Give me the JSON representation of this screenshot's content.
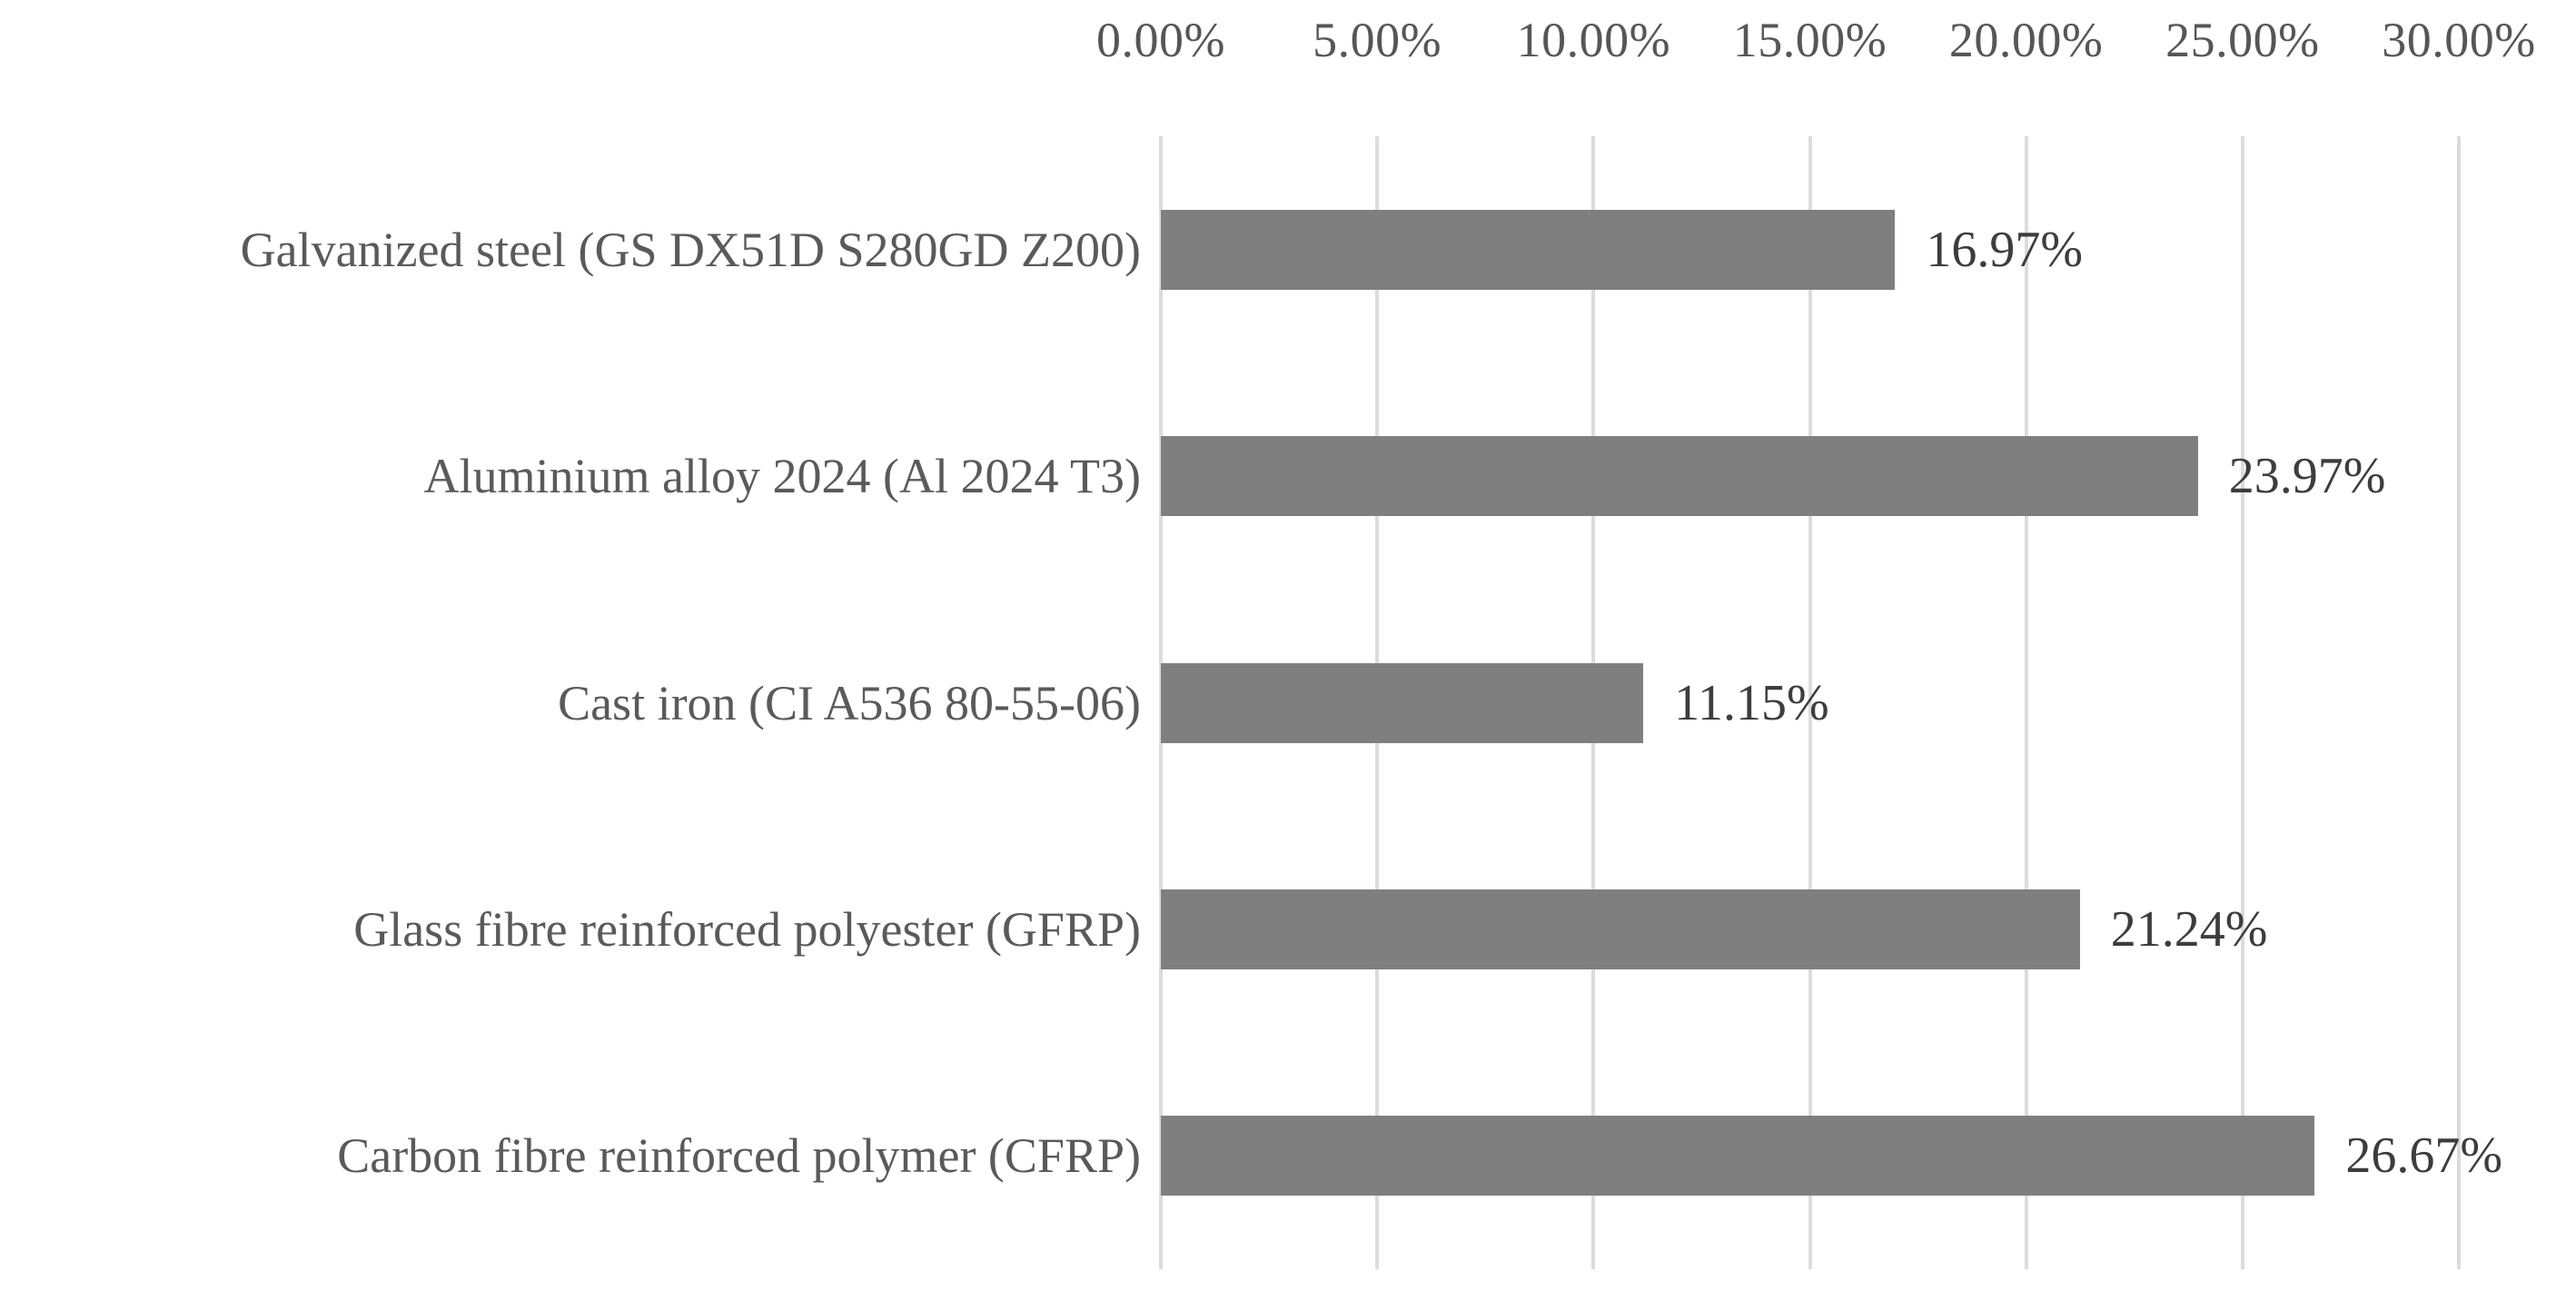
{
  "figure": {
    "background": "#ffffff"
  },
  "chart_data": {
    "type": "bar",
    "orientation": "horizontal",
    "title": "",
    "xlabel": "",
    "ylabel": "",
    "categories": [
      "Galvanized steel (GS DX51D S280GD Z200)",
      "Aluminium alloy 2024 (Al 2024 T3)",
      "Cast iron (CI A536 80-55-06)",
      "Glass fibre reinforced polyester (GFRP)",
      "Carbon fibre reinforced polymer (CFRP)"
    ],
    "values": [
      16.97,
      23.97,
      11.15,
      21.24,
      26.67
    ],
    "data_labels": [
      "16.97%",
      "23.97%",
      "11.15%",
      "21.24%",
      "26.67%"
    ],
    "xlim": [
      0,
      30
    ],
    "x_ticks": [
      0,
      5,
      10,
      15,
      20,
      25,
      30
    ],
    "x_tick_labels": [
      "0.00%",
      "5.00%",
      "10.00%",
      "15.00%",
      "20.00%",
      "25.00%",
      "30.00%"
    ],
    "axis_position": "top",
    "grid": "vertical",
    "legend_position": "none",
    "colors": {
      "bar": "#7f7f7f",
      "gridline": "#dcdcdc",
      "tick_text": "#565656",
      "category_text": "#5a5a5a",
      "value_text": "#3d3d3d",
      "background": "#ffffff"
    }
  }
}
